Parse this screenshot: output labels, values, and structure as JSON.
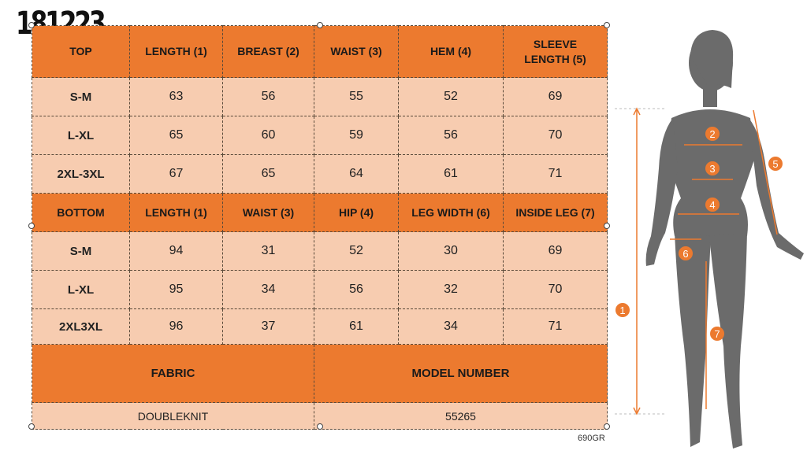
{
  "code_title": "181223",
  "top_table": {
    "headers": [
      "TOP",
      "LENGTH (1)",
      "BREAST (2)",
      "WAIST (3)",
      "HEM (4)",
      "SLEEVE LENGTH (5)"
    ],
    "header_sleeve_line1": "SLEEVE",
    "header_sleeve_line2": "LENGTH (5)",
    "rows": [
      {
        "size": "S-M",
        "values": [
          "63",
          "56",
          "55",
          "52",
          "69"
        ]
      },
      {
        "size": "L-XL",
        "values": [
          "65",
          "60",
          "59",
          "56",
          "70"
        ]
      },
      {
        "size": "2XL-3XL",
        "values": [
          "67",
          "65",
          "64",
          "61",
          "71"
        ]
      }
    ]
  },
  "bottom_table": {
    "headers": [
      "BOTTOM",
      "LENGTH (1)",
      "WAIST (3)",
      "HIP (4)",
      "LEG WIDTH (6)",
      "INSIDE LEG (7)"
    ],
    "rows": [
      {
        "size": "S-M",
        "values": [
          "94",
          "31",
          "52",
          "30",
          "69"
        ]
      },
      {
        "size": "L-XL",
        "values": [
          "95",
          "34",
          "56",
          "32",
          "70"
        ]
      },
      {
        "size": "2XL3XL",
        "values": [
          "96",
          "37",
          "61",
          "34",
          "71"
        ]
      }
    ]
  },
  "details": {
    "fabric_label": "FABRIC",
    "model_number_label": "MODEL NUMBER",
    "fabric_value": "DOUBLEKNIT",
    "model_number_value": "55265"
  },
  "footer_code": "690GR",
  "figure_markers": [
    "1",
    "2",
    "3",
    "4",
    "5",
    "6",
    "7"
  ],
  "colors": {
    "header_orange": "#ec7a2f",
    "cell_peach": "#f7ccb0",
    "silhouette": "#6b6b6b",
    "marker": "#ec7a2f"
  }
}
